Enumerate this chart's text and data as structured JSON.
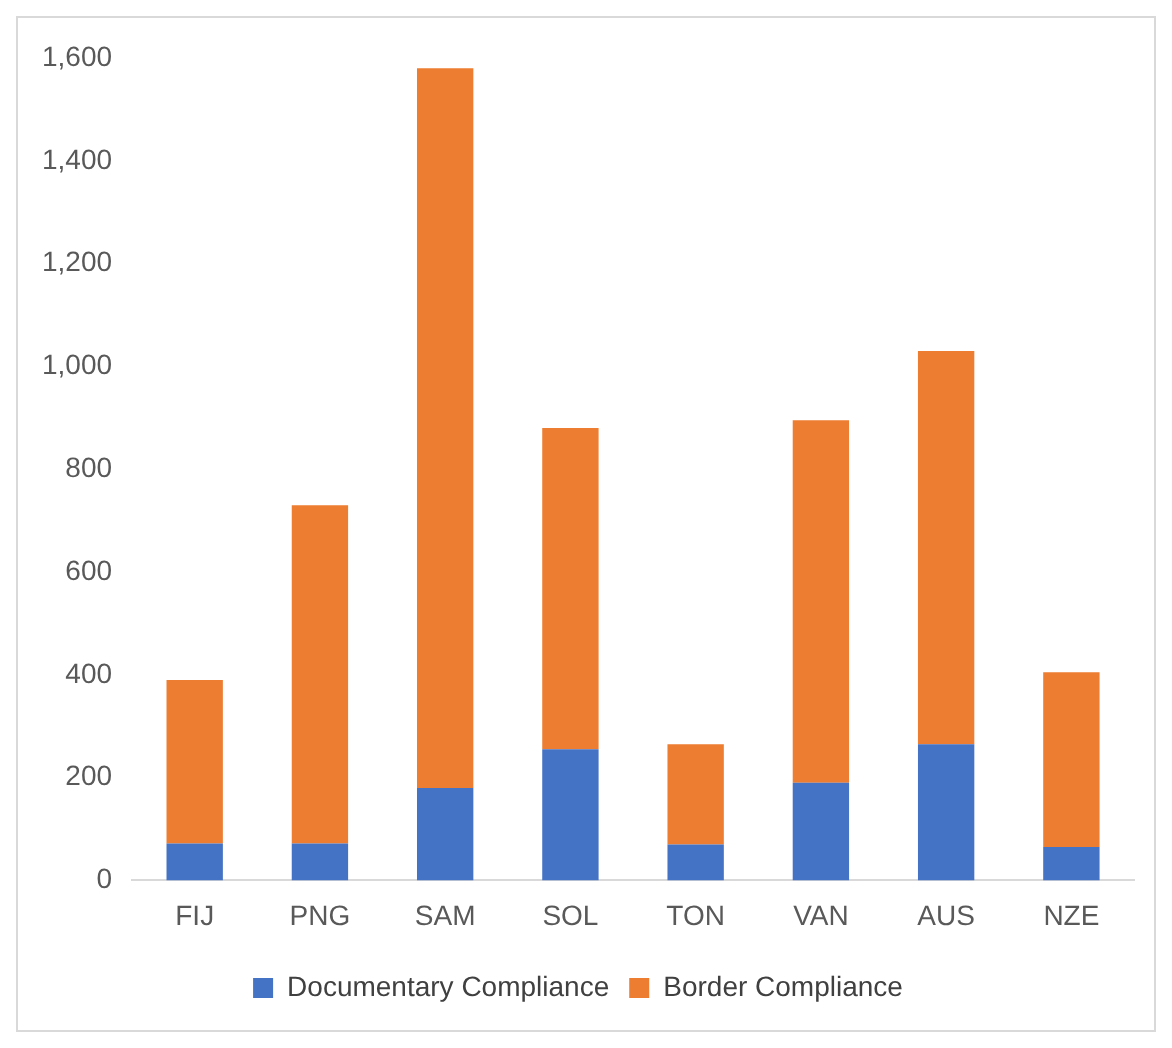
{
  "chart_data": {
    "type": "bar",
    "stacked": true,
    "categories": [
      "FIJ",
      "PNG",
      "SAM",
      "SOL",
      "TON",
      "VAN",
      "AUS",
      "NZE"
    ],
    "series": [
      {
        "name": "Documentary Compliance",
        "color": "#4472c4",
        "values": [
          72,
          72,
          180,
          255,
          70,
          190,
          265,
          65
        ]
      },
      {
        "name": "Border Compliance",
        "color": "#ed7d31",
        "values": [
          318,
          658,
          1400,
          625,
          195,
          705,
          765,
          340
        ]
      }
    ],
    "ylim": [
      0,
      1600
    ],
    "yticks": [
      {
        "value": 0,
        "label": "0"
      },
      {
        "value": 200,
        "label": "200"
      },
      {
        "value": 400,
        "label": "400"
      },
      {
        "value": 600,
        "label": "600"
      },
      {
        "value": 800,
        "label": "800"
      },
      {
        "value": 1000,
        "label": "1,000"
      },
      {
        "value": 1200,
        "label": "1,200"
      },
      {
        "value": 1400,
        "label": "1,400"
      },
      {
        "value": 1600,
        "label": "1,600"
      }
    ],
    "grid": false,
    "legend": "bottom"
  }
}
